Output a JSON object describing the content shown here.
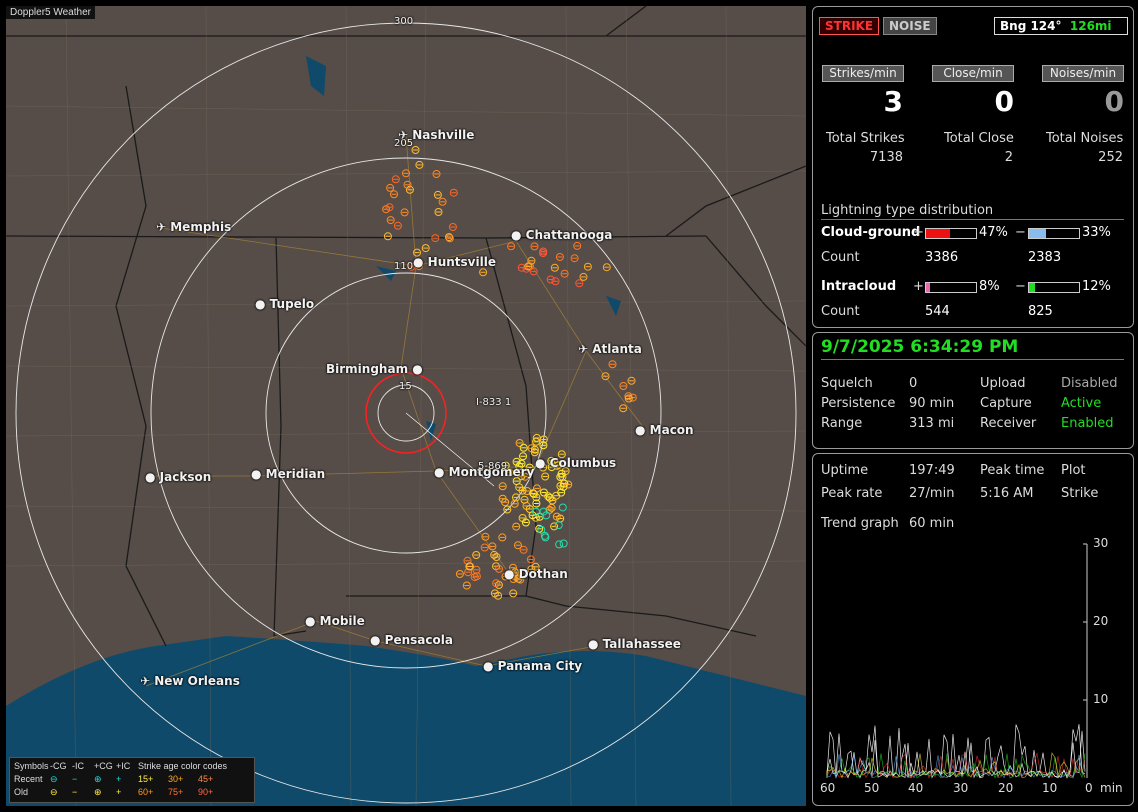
{
  "window_title": "Doppler5 Weather",
  "colors": {
    "map_bg": "#564d49",
    "water": "#0f4a6a",
    "ring": "#e8e8e8",
    "close_ring": "#ff2020",
    "accent_green": "#22dd22"
  },
  "map": {
    "range_labels": [
      "300",
      "205",
      "110",
      "15"
    ],
    "cities": [
      {
        "name": "Nashville",
        "icon": "airport-icon"
      },
      {
        "name": "Memphis",
        "icon": "airport-icon"
      },
      {
        "name": "Chattanooga",
        "icon": "dot-icon"
      },
      {
        "name": "Huntsville",
        "icon": "dot-icon"
      },
      {
        "name": "Tupelo",
        "icon": "dot-icon"
      },
      {
        "name": "Atlanta",
        "icon": "airport-icon"
      },
      {
        "name": "Birmingham",
        "icon": "dot-icon"
      },
      {
        "name": "Macon",
        "icon": "dot-icon"
      },
      {
        "name": "Columbus",
        "icon": "dot-icon"
      },
      {
        "name": "Montgomery",
        "icon": "dot-icon"
      },
      {
        "name": "Jackson",
        "icon": "dot-icon"
      },
      {
        "name": "Meridian",
        "icon": "dot-icon"
      },
      {
        "name": "Dothan",
        "icon": "dot-icon"
      },
      {
        "name": "Mobile",
        "icon": "dot-icon"
      },
      {
        "name": "Pensacola",
        "icon": "dot-icon"
      },
      {
        "name": "Tallahassee",
        "icon": "dot-icon"
      },
      {
        "name": "Panama City",
        "icon": "dot-icon"
      },
      {
        "name": "New Orleans",
        "icon": "airport-icon"
      }
    ],
    "markers": [
      "I-833 1",
      "5-869"
    ],
    "legend": {
      "row1": [
        "Symbols",
        "-CG",
        "-IC",
        "+CG",
        "+IC",
        "Strike age color codes"
      ],
      "row2_label": "Recent",
      "row3_label": "Old",
      "recent_ages": [
        "15+",
        "30+",
        "45+"
      ],
      "old_ages": [
        "60+",
        "75+",
        "90+"
      ]
    }
  },
  "stats": {
    "strike_button": "STRIKE",
    "noise_button": "NOISE",
    "bearing": "Bng 124°",
    "distance": "126mi",
    "headers": [
      "Strikes/min",
      "Close/min",
      "Noises/min"
    ],
    "rates": [
      "3",
      "0",
      "0"
    ],
    "total_labels": [
      "Total Strikes",
      "Total Close",
      "Total Noises"
    ],
    "totals": [
      "7138",
      "2",
      "252"
    ],
    "distribution_title": "Lightning type distribution",
    "cg_label": "Cloud-ground",
    "ic_label": "Intracloud",
    "count_label": "Count",
    "plus": "+",
    "minus": "−",
    "cg_pos_pct": "47%",
    "cg_neg_pct": "33%",
    "ic_pos_pct": "8%",
    "ic_neg_pct": "12%",
    "cg_pos_fill": 0.47,
    "cg_neg_fill": 0.33,
    "ic_pos_fill": 0.08,
    "ic_neg_fill": 0.12,
    "cg_pos_count": "3386",
    "cg_neg_count": "2383",
    "ic_pos_count": "544",
    "ic_neg_count": "825"
  },
  "status": {
    "datetime": "9/7/2025 6:34:29 PM",
    "rows": [
      [
        "Squelch",
        "0",
        "Upload",
        "Disabled"
      ],
      [
        "Persistence",
        "90 min",
        "Capture",
        "Active"
      ],
      [
        "Range",
        "313 mi",
        "Receiver",
        "Enabled"
      ]
    ]
  },
  "trend": {
    "uptime_label": "Uptime",
    "uptime": "197:49",
    "peak_time_label": "Peak time",
    "plot_label": "Plot",
    "peak_rate_label": "Peak rate",
    "peak_rate": "27/min",
    "peak_time": "5:16 AM",
    "plot_value": "Strike",
    "trend_label": "Trend graph",
    "trend_value": "60 min",
    "y_ticks": [
      "30",
      "20",
      "10"
    ],
    "x_ticks": [
      "60",
      "50",
      "40",
      "30",
      "20",
      "10",
      "0"
    ],
    "x_unit": "min"
  }
}
